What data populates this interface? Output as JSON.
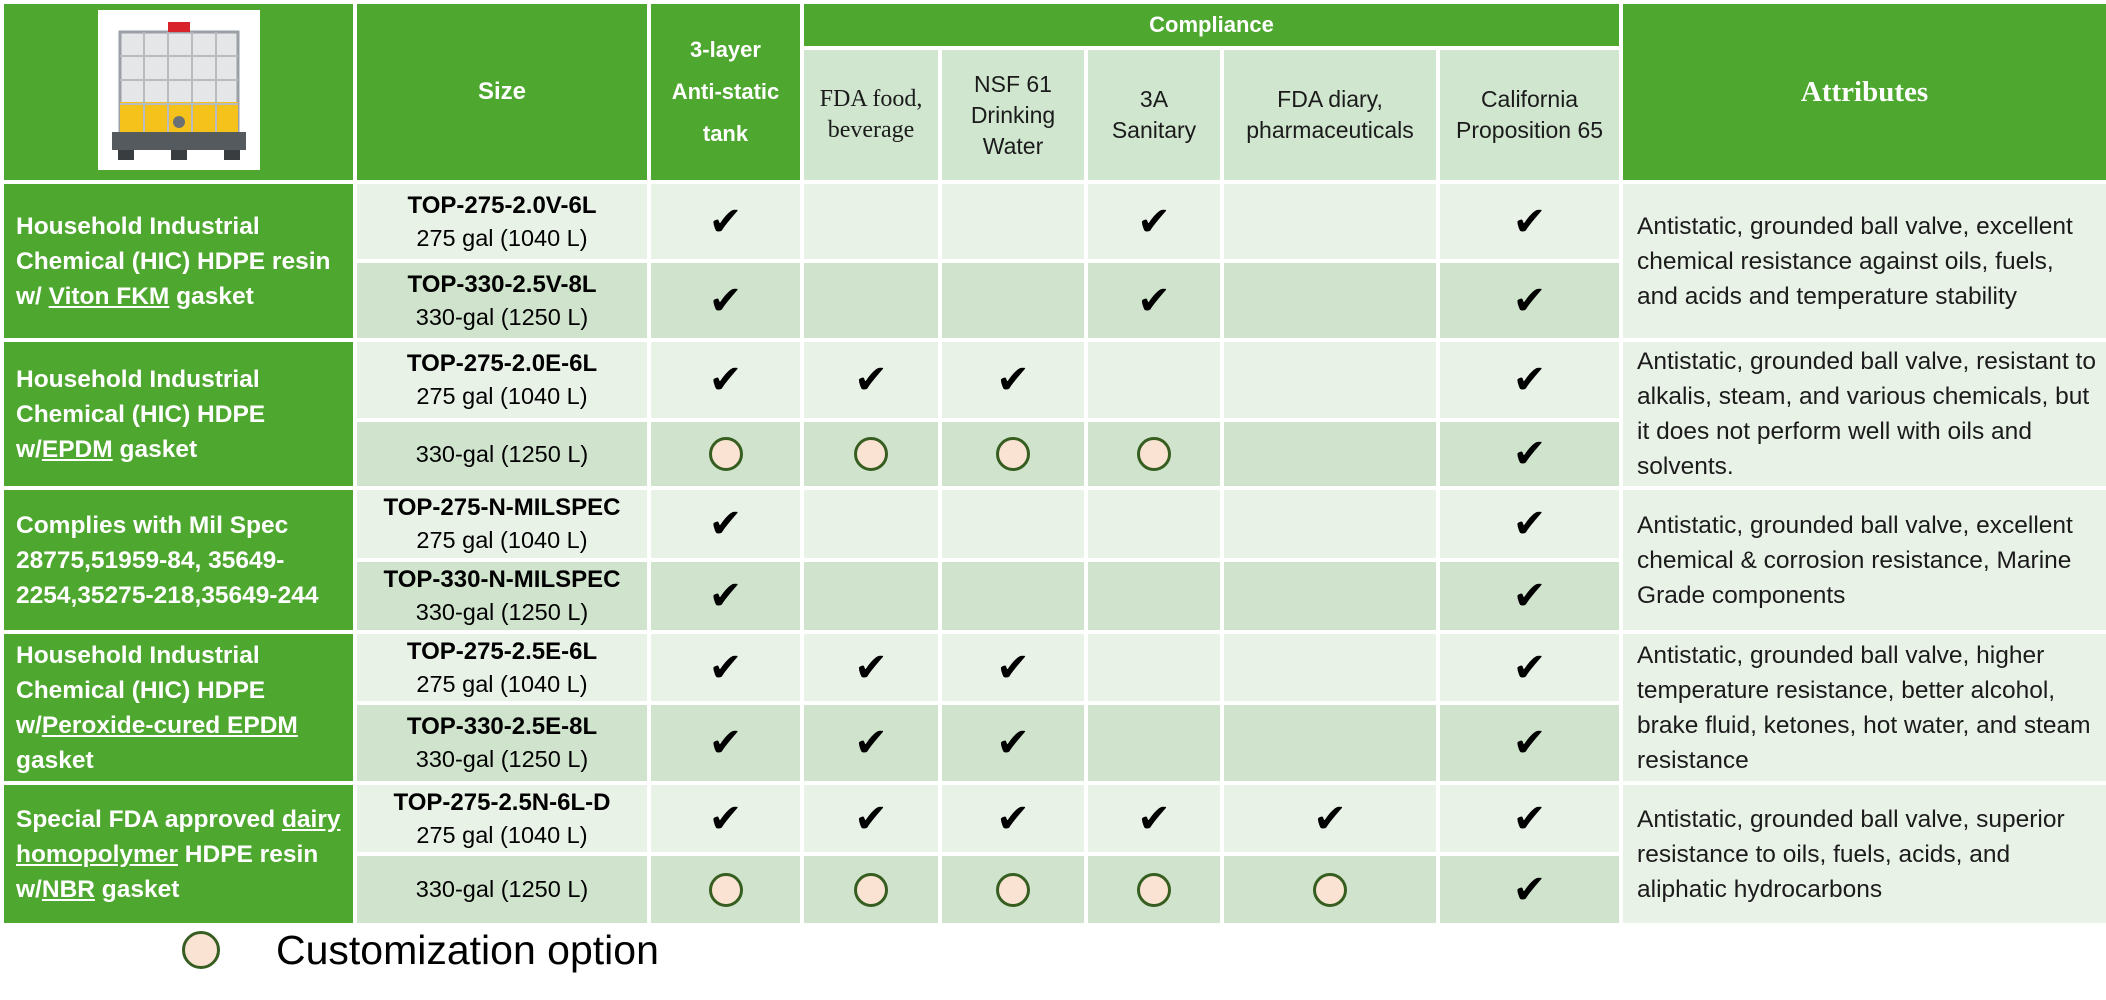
{
  "header": {
    "size": "Size",
    "anti_static": [
      "3-layer",
      "Anti-static",
      "tank"
    ],
    "compliance": "Compliance",
    "cols": {
      "fda_food": [
        "FDA food,",
        "beverage"
      ],
      "nsf61": [
        "NSF 61",
        "Drinking",
        "Water"
      ],
      "a3": [
        "3A",
        "Sanitary"
      ],
      "fda_dairy": [
        "FDA diary,",
        "pharmaceuticals"
      ],
      "ca65": [
        "California",
        "Proposition 65"
      ]
    },
    "attributes": "Attributes"
  },
  "product_icon": "ibc-tote-icon",
  "groups": [
    {
      "name_parts": [
        "Household Industrial Chemical (HIC) HDPE resin w/ ",
        "Viton FKM",
        " gasket"
      ],
      "attributes": "Antistatic, grounded ball valve, excellent chemical resistance against oils, fuels, and acids and temperature stability",
      "rows": [
        {
          "code": "TOP-275-2.0V-6L",
          "capacity": "275 gal (1040 L)",
          "marks": [
            "check",
            "",
            "",
            "check",
            "",
            "check"
          ]
        },
        {
          "code": "TOP-330-2.5V-8L",
          "capacity": "330-gal (1250 L)",
          "marks": [
            "check",
            "",
            "",
            "check",
            "",
            "check"
          ]
        }
      ]
    },
    {
      "name_parts": [
        "Household Industrial Chemical (HIC) HDPE w/",
        "EPDM",
        " gasket"
      ],
      "attributes": "Antistatic, grounded ball valve, resistant to alkalis, steam, and various chemicals, but it does not perform well with oils and solvents.",
      "rows": [
        {
          "code": "TOP-275-2.0E-6L",
          "capacity": "275 gal (1040 L)",
          "marks": [
            "check",
            "check",
            "check",
            "",
            "",
            "check"
          ]
        },
        {
          "code": "",
          "capacity": "330-gal (1250 L)",
          "marks": [
            "option",
            "option",
            "option",
            "option",
            "",
            "check"
          ]
        }
      ]
    },
    {
      "name_parts": [
        "Complies with Mil Spec 28775,51959-84, 35649-2254,35275-218,35649-244",
        "",
        ""
      ],
      "attributes": "Antistatic, grounded ball valve, excellent chemical & corrosion resistance, Marine Grade components",
      "rows": [
        {
          "code": "TOP-275-N-MILSPEC",
          "capacity": "275 gal (1040 L)",
          "marks": [
            "check",
            "",
            "",
            "",
            "",
            "check"
          ]
        },
        {
          "code": "TOP-330-N-MILSPEC",
          "capacity": "330-gal (1250 L)",
          "marks": [
            "check",
            "",
            "",
            "",
            "",
            "check"
          ]
        }
      ]
    },
    {
      "name_parts": [
        "Household Industrial Chemical (HIC) HDPE w/",
        "Peroxide-cured EPDM",
        " gasket"
      ],
      "attributes": "Antistatic, grounded ball valve, higher temperature resistance, better alcohol, brake fluid, ketones, hot water, and steam resistance",
      "rows": [
        {
          "code": "TOP-275-2.5E-6L",
          "capacity": "275 gal (1040 L)",
          "marks": [
            "check",
            "check",
            "check",
            "",
            "",
            "check"
          ]
        },
        {
          "code": "TOP-330-2.5E-8L",
          "capacity": "330-gal (1250 L)",
          "marks": [
            "check",
            "check",
            "check",
            "",
            "",
            "check"
          ]
        }
      ]
    },
    {
      "name_parts": [
        "Special FDA approved ",
        "dairy homopolymer",
        " HDPE resin w/",
        "NBR",
        " gasket"
      ],
      "attributes": "Antistatic, grounded ball valve, superior resistance to oils, fuels, acids, and aliphatic hydrocarbons",
      "rows": [
        {
          "code": "TOP-275-2.5N-6L-D",
          "capacity": "275 gal (1040 L)",
          "marks": [
            "check",
            "check",
            "check",
            "check",
            "check",
            "check"
          ]
        },
        {
          "code": "",
          "capacity": "330-gal (1250 L)",
          "marks": [
            "option",
            "option",
            "option",
            "option",
            "option",
            "check"
          ]
        }
      ]
    }
  ],
  "legend": {
    "label": "Customization option",
    "icon": "customization-option-icon"
  },
  "colors": {
    "header_green": "#4ea72e",
    "sub_header": "#d0e6cf",
    "row_light": "#e9f2e7",
    "row_dark": "#d0e4cd",
    "option_fill": "#fbe3d3",
    "option_ring": "#375e21"
  }
}
